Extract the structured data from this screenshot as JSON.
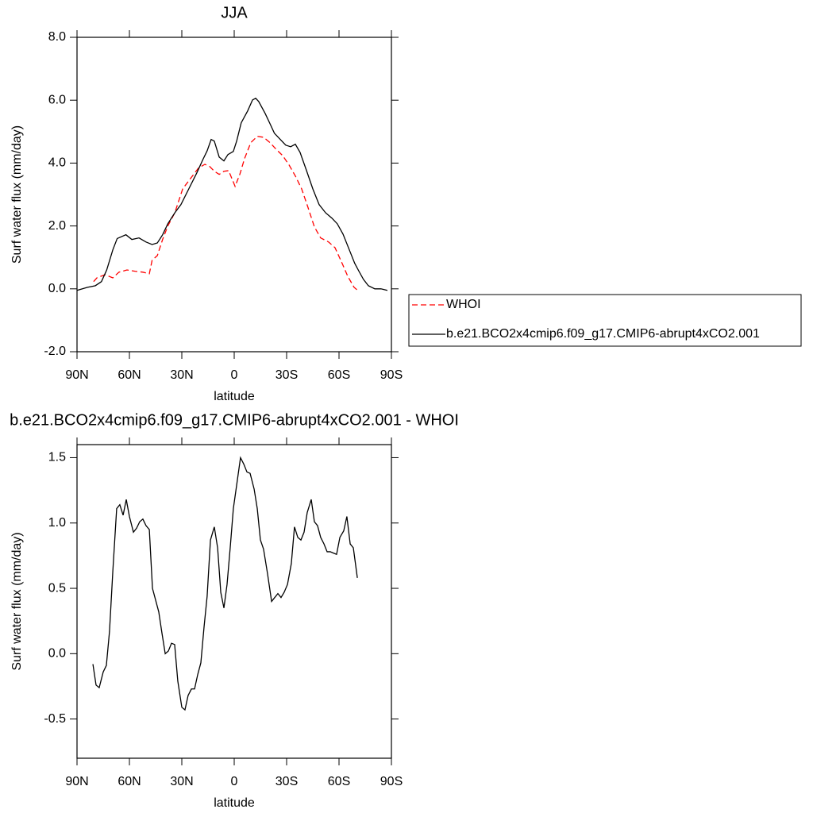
{
  "chart_data": [
    {
      "type": "line",
      "title": "JJA",
      "xlabel": "latitude",
      "ylabel": "Surf water flux (mm/day)",
      "xlim": [
        90,
        -90
      ],
      "ylim": [
        -2,
        8
      ],
      "xticks": [
        {
          "value": 90,
          "label": "90N"
        },
        {
          "value": 60,
          "label": "60N"
        },
        {
          "value": 30,
          "label": "30N"
        },
        0,
        {
          "value": -30,
          "label": "30S"
        },
        {
          "value": -60,
          "label": "60S"
        },
        {
          "value": -90,
          "label": "90S"
        }
      ],
      "yticks": [
        {
          "value": -2,
          "label": "-2.0"
        },
        {
          "value": 0,
          "label": "0.0"
        },
        {
          "value": 2,
          "label": "2.0"
        },
        {
          "value": 4,
          "label": "4.0"
        },
        {
          "value": 6,
          "label": "6.0"
        },
        {
          "value": 8,
          "label": "8.0"
        }
      ],
      "legend": "outside-right",
      "series": [
        {
          "name": "WHOI",
          "color": "#ff0000",
          "dashed": true,
          "x": [
            80.5,
            78.6,
            74,
            69.5,
            66,
            61.4,
            56.8,
            52.3,
            48.6,
            47,
            44,
            41,
            38,
            34,
            29.5,
            25,
            20.5,
            16.8,
            14,
            11.4,
            8.6,
            5.9,
            3.2,
            -0.5,
            -3.2,
            -5.9,
            -9.5,
            -13.2,
            -16.8,
            -20.5,
            -24,
            -27.7,
            -31.4,
            -35,
            -38.6,
            -42.3,
            -45.9,
            -49.5,
            -54,
            -57.7,
            -61.4,
            -65,
            -68.6,
            -71.4
          ],
          "values": [
            0.23,
            0.35,
            0.45,
            0.35,
            0.53,
            0.6,
            0.56,
            0.53,
            0.48,
            0.91,
            1.06,
            1.57,
            2.0,
            2.42,
            3.18,
            3.51,
            3.84,
            3.96,
            3.89,
            3.74,
            3.64,
            3.74,
            3.76,
            3.26,
            3.64,
            4.14,
            4.65,
            4.85,
            4.82,
            4.65,
            4.44,
            4.24,
            3.94,
            3.59,
            3.18,
            2.58,
            1.97,
            1.62,
            1.49,
            1.31,
            0.86,
            0.4,
            0.05,
            -0.08
          ]
        },
        {
          "name": "b.e21.BCO2x4cmip6.f09_g17.CMIP6-abrupt4xCO2.001",
          "color": "#000000",
          "dashed": false,
          "x": [
            90,
            84,
            79.5,
            76,
            73,
            69.5,
            67,
            62,
            58.6,
            54.5,
            50.5,
            47,
            44,
            41,
            38,
            34,
            30.5,
            26,
            21.4,
            17.7,
            15.5,
            13.2,
            11.4,
            8.6,
            5.9,
            3.6,
            0.5,
            -1.4,
            -4,
            -7.7,
            -10.5,
            -12.3,
            -14,
            -17.7,
            -20.5,
            -23,
            -26.4,
            -29.5,
            -32.3,
            -35,
            -37.7,
            -41.4,
            -45,
            -48.6,
            -52.3,
            -55.9,
            -59,
            -62.3,
            -65.9,
            -69,
            -71.4,
            -74,
            -76.8,
            -80.5,
            -84,
            -87.7
          ],
          "values": [
            -0.05,
            0.05,
            0.1,
            0.23,
            0.6,
            1.24,
            1.6,
            1.72,
            1.57,
            1.62,
            1.49,
            1.41,
            1.46,
            1.72,
            2.07,
            2.42,
            2.68,
            3.18,
            3.69,
            4.14,
            4.39,
            4.75,
            4.7,
            4.19,
            4.07,
            4.27,
            4.37,
            4.7,
            5.28,
            5.66,
            6.01,
            6.06,
            5.96,
            5.58,
            5.25,
            4.95,
            4.75,
            4.57,
            4.52,
            4.6,
            4.34,
            3.76,
            3.18,
            2.68,
            2.42,
            2.25,
            2.07,
            1.74,
            1.24,
            0.81,
            0.56,
            0.3,
            0.1,
            0.0,
            0.0,
            -0.05
          ]
        }
      ]
    },
    {
      "type": "line",
      "title": "b.e21.BCO2x4cmip6.f09_g17.CMIP6-abrupt4xCO2.001 - WHOI",
      "xlabel": "latitude",
      "ylabel": "Surf water flux (mm/day)",
      "xlim": [
        90,
        -90
      ],
      "ylim": [
        -0.8,
        1.6
      ],
      "xticks": [
        {
          "value": 90,
          "label": "90N"
        },
        {
          "value": 60,
          "label": "60N"
        },
        {
          "value": 30,
          "label": "30N"
        },
        0,
        {
          "value": -30,
          "label": "30S"
        },
        {
          "value": -60,
          "label": "60S"
        },
        {
          "value": -90,
          "label": "90S"
        }
      ],
      "yticks": [
        -0.5,
        {
          "value": 0,
          "label": "0.0"
        },
        0.5,
        {
          "value": 1,
          "label": "1.0"
        },
        1.5
      ],
      "series": [
        {
          "color": "#000000",
          "dashed": false,
          "x": [
            80.9,
            79.1,
            77.3,
            75,
            73.2,
            71.4,
            69.5,
            67.3,
            65.5,
            63.6,
            61.8,
            60,
            57.7,
            55.9,
            54.1,
            52.3,
            50.5,
            48.6,
            46.8,
            45,
            43.2,
            41.4,
            39.5,
            37.7,
            35.9,
            34.1,
            32.3,
            30,
            28.2,
            26.4,
            24.5,
            22.7,
            20.9,
            19.1,
            17.3,
            15.5,
            13.6,
            11.4,
            9.5,
            7.7,
            5.9,
            4.1,
            2.3,
            0.5,
            -1.4,
            -3.6,
            -5.5,
            -7.3,
            -9.1,
            -11.4,
            -13.2,
            -15,
            -16.8,
            -19.1,
            -21.4,
            -23.2,
            -25,
            -26.8,
            -28.6,
            -30.5,
            -32.7,
            -34.5,
            -36.4,
            -38.2,
            -40,
            -41.8,
            -44.1,
            -45.9,
            -47.7,
            -49.5,
            -51.4,
            -53.2,
            -55,
            -56.8,
            -58.6,
            -60.5,
            -62.7,
            -64.5,
            -66.4,
            -68.2,
            -70.5
          ],
          "values": [
            -0.08,
            -0.24,
            -0.26,
            -0.14,
            -0.09,
            0.17,
            0.63,
            1.11,
            1.14,
            1.06,
            1.18,
            1.05,
            0.93,
            0.96,
            1.01,
            1.03,
            0.98,
            0.95,
            0.5,
            0.41,
            0.32,
            0.16,
            0.0,
            0.02,
            0.08,
            0.07,
            -0.21,
            -0.41,
            -0.43,
            -0.32,
            -0.27,
            -0.27,
            -0.16,
            -0.07,
            0.2,
            0.44,
            0.87,
            0.97,
            0.81,
            0.47,
            0.35,
            0.53,
            0.81,
            1.11,
            1.29,
            1.5,
            1.45,
            1.39,
            1.38,
            1.26,
            1.11,
            0.87,
            0.8,
            0.61,
            0.4,
            0.43,
            0.46,
            0.43,
            0.47,
            0.53,
            0.69,
            0.97,
            0.89,
            0.87,
            0.93,
            1.08,
            1.18,
            1.01,
            0.98,
            0.89,
            0.84,
            0.78,
            0.78,
            0.77,
            0.76,
            0.89,
            0.94,
            1.05,
            0.84,
            0.81,
            0.58
          ]
        }
      ]
    }
  ]
}
